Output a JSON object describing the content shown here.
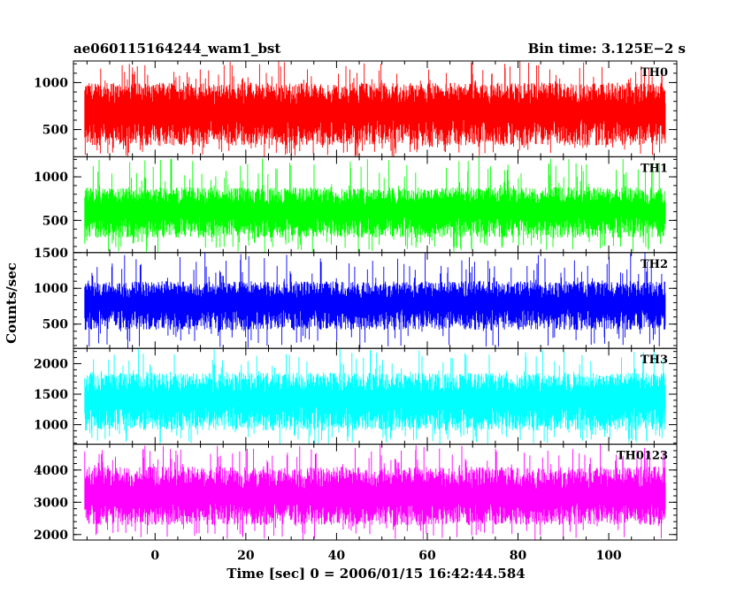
{
  "chart_data": {
    "type": "line",
    "title_left": "ae060115164244_wam1_bst",
    "title_right": "Bin time: 3.125E−2 s",
    "xlabel": "Time [sec] 0 = 2006/01/15 16:42:44.584",
    "ylabel": "Counts/sec",
    "xlim": [
      -18,
      115
    ],
    "x_range_data": [
      -15.5,
      112.5
    ],
    "x_ticks": [
      0,
      20,
      40,
      60,
      80,
      100
    ],
    "x_tick_labels": [
      "0",
      "20",
      "40",
      "60",
      "80",
      "100"
    ],
    "grid": false,
    "panels": [
      {
        "label": "TH0",
        "color": "#ff0000",
        "ylim": [
          210,
          1230
        ],
        "y_ticks": [
          500,
          1000
        ],
        "y_tick_labels": [
          "500",
          "1000"
        ],
        "mean": 640,
        "low": 330,
        "high": 1000,
        "min": 210,
        "max": 1230
      },
      {
        "label": "TH1",
        "color": "#00ff00",
        "ylim": [
          130,
          1230
        ],
        "y_ticks": [
          500,
          1000
        ],
        "y_tick_labels": [
          "500",
          "1000"
        ],
        "mean": 570,
        "low": 300,
        "high": 880,
        "min": 130,
        "max": 1230
      },
      {
        "label": "TH2",
        "color": "#0000ff",
        "ylim": [
          160,
          1500
        ],
        "y_ticks": [
          500,
          1000,
          1500
        ],
        "y_tick_labels": [
          "500",
          "1000",
          "1500"
        ],
        "mean": 740,
        "low": 420,
        "high": 1100,
        "min": 160,
        "max": 1500
      },
      {
        "label": "TH3",
        "color": "#00ffff",
        "ylim": [
          680,
          2250
        ],
        "y_ticks": [
          1000,
          1500,
          2000
        ],
        "y_tick_labels": [
          "1000",
          "1500",
          "2000"
        ],
        "mean": 1350,
        "low": 900,
        "high": 1850,
        "min": 680,
        "max": 2250
      },
      {
        "label": "TH0123",
        "color": "#ff00ff",
        "ylim": [
          1830,
          4800
        ],
        "y_ticks": [
          2000,
          3000,
          4000
        ],
        "y_tick_labels": [
          "2000",
          "3000",
          "4000"
        ],
        "mean": 3050,
        "low": 2300,
        "high": 4100,
        "min": 1830,
        "max": 4800
      }
    ]
  }
}
